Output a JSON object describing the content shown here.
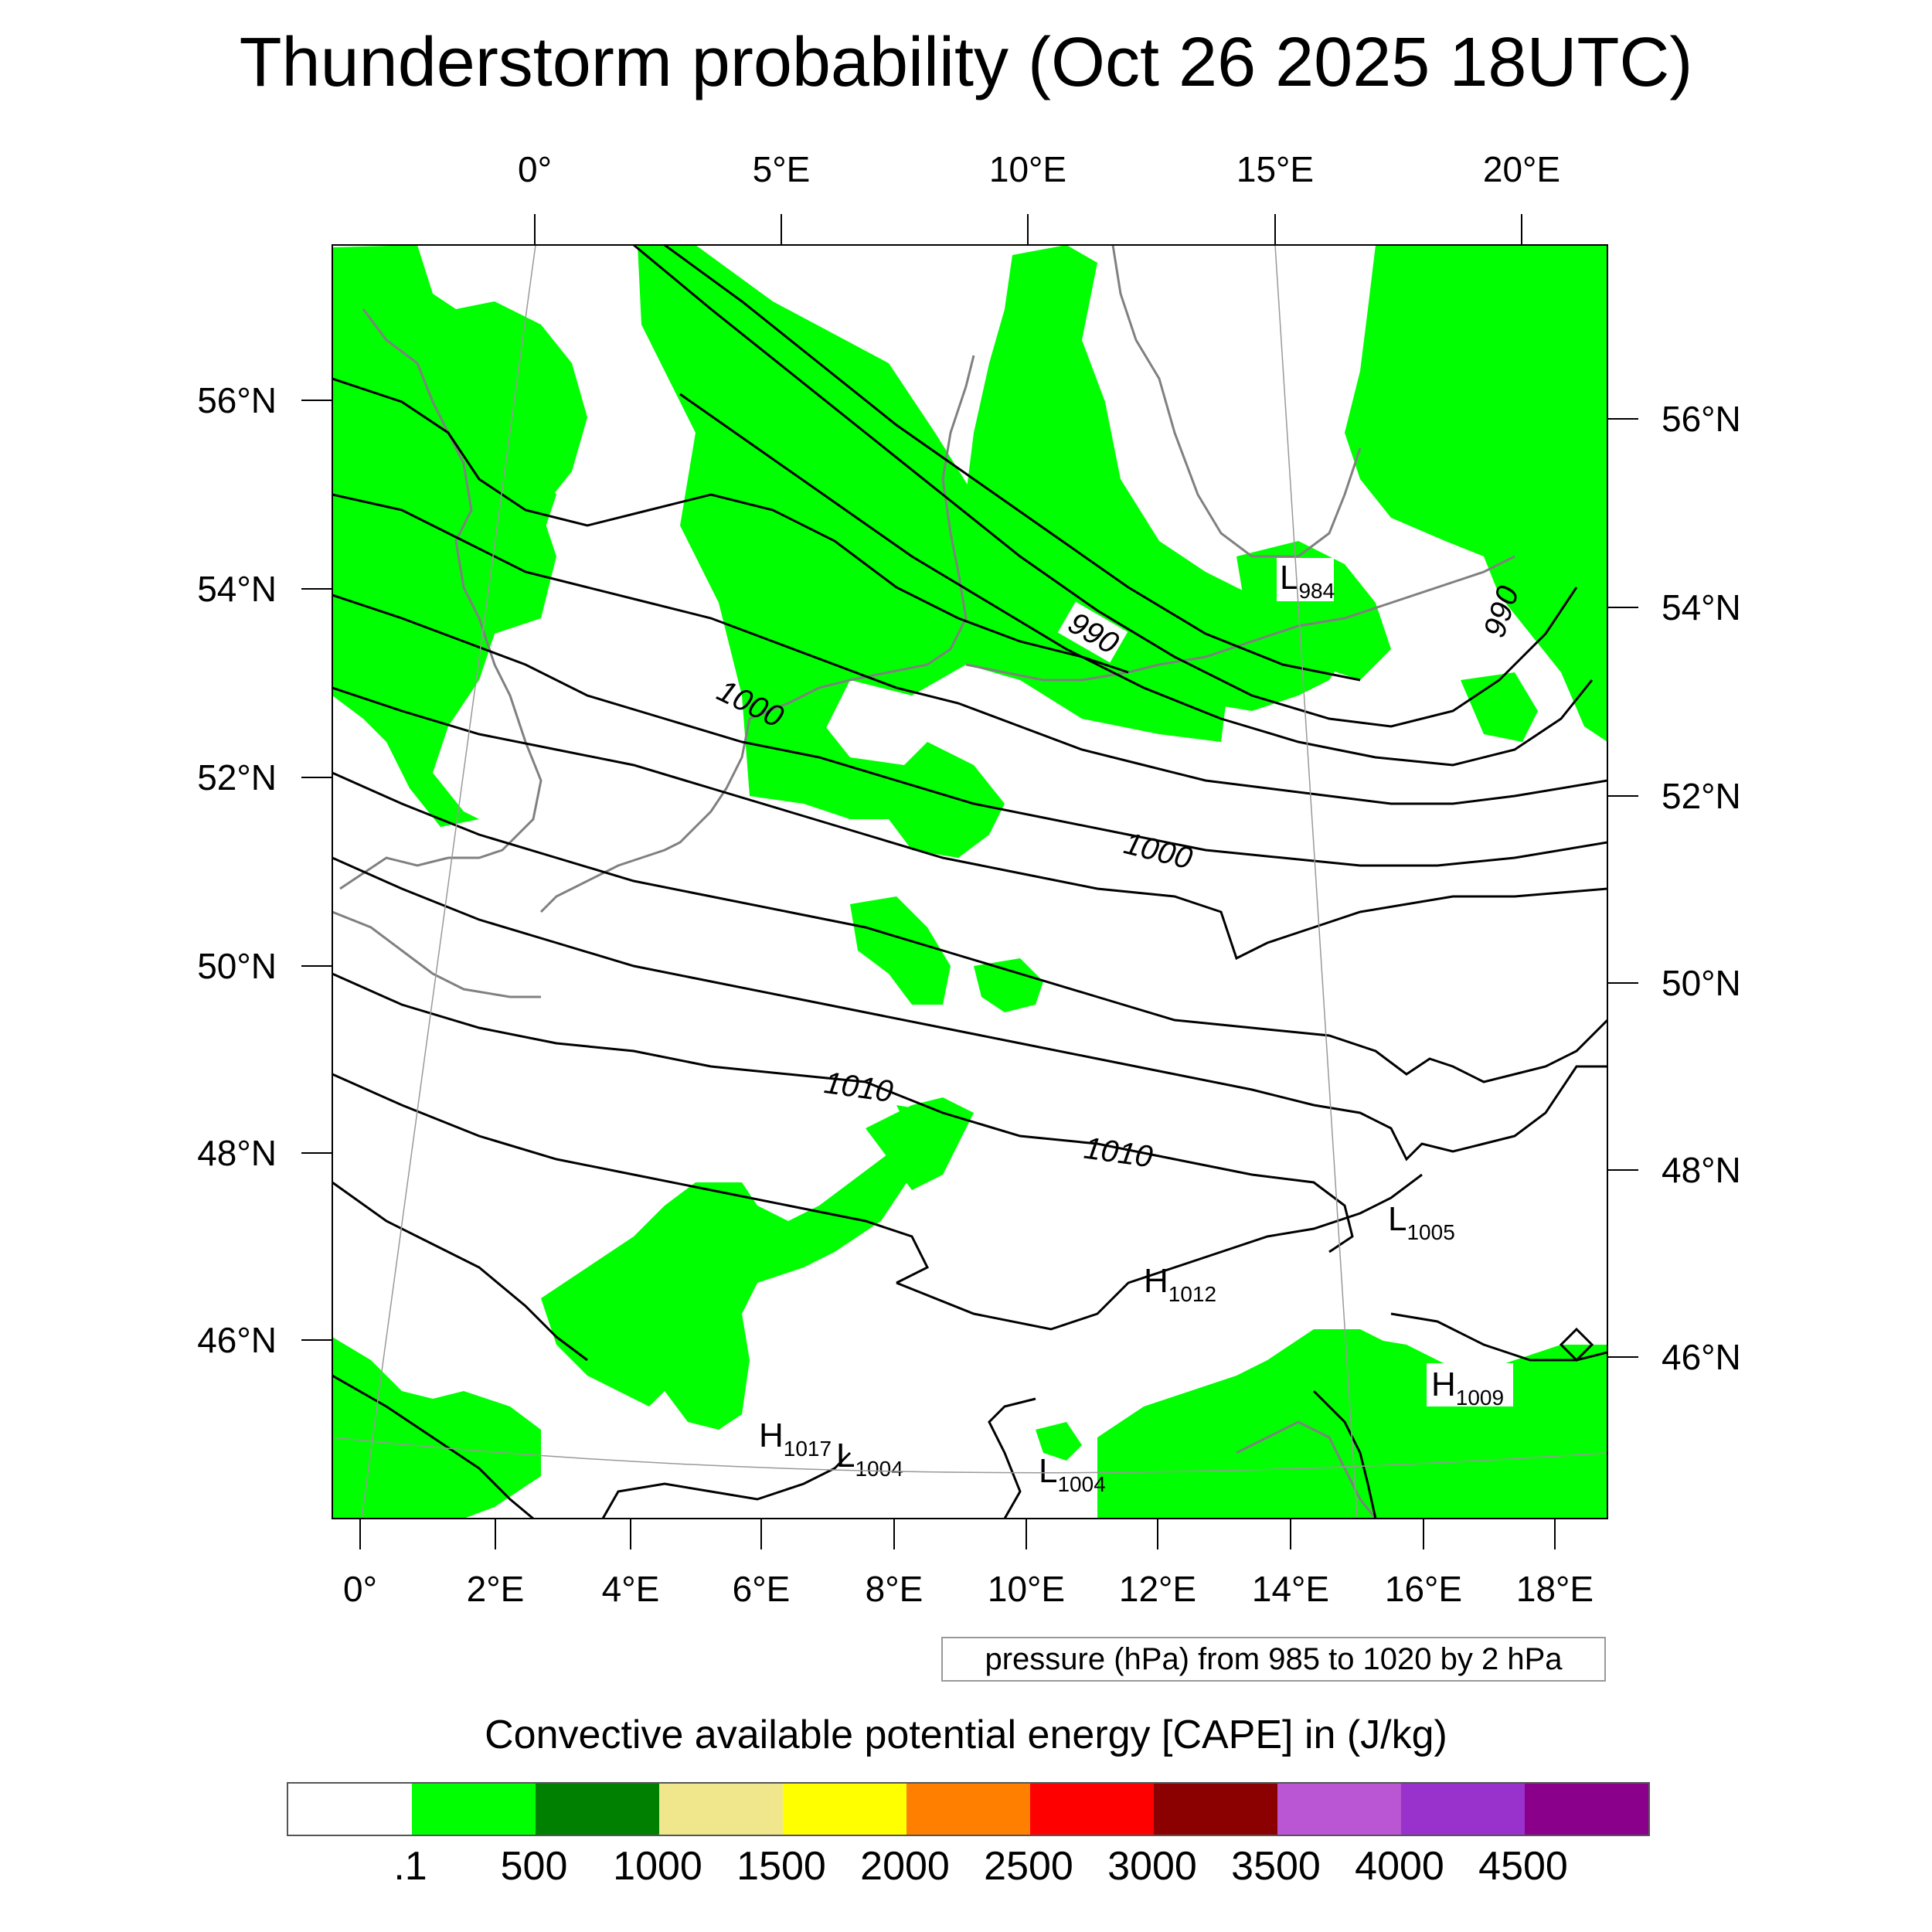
{
  "title": "Thunderstorm probability (Oct 26 2025 18UTC)",
  "top_lon_labels": [
    "0°",
    "5°E",
    "10°E",
    "15°E",
    "20°E"
  ],
  "bottom_lon_labels": [
    "0°",
    "2°E",
    "4°E",
    "6°E",
    "8°E",
    "10°E",
    "12°E",
    "14°E",
    "16°E",
    "18°E"
  ],
  "left_lat_labels": [
    "56°N",
    "54°N",
    "52°N",
    "50°N",
    "48°N",
    "46°N"
  ],
  "right_lat_labels": [
    "56°N",
    "54°N",
    "52°N",
    "50°N",
    "48°N",
    "46°N"
  ],
  "isobar_labels": [
    "1000",
    "1000",
    "990",
    "990",
    "1010",
    "1010"
  ],
  "pressure_centers": [
    {
      "type": "L",
      "value": "984"
    },
    {
      "type": "L",
      "value": "1005"
    },
    {
      "type": "H",
      "value": "1012"
    },
    {
      "type": "H",
      "value": "1009"
    },
    {
      "type": "H",
      "value": "1017"
    },
    {
      "type": "L",
      "value": "1004"
    },
    {
      "type": "L",
      "value": "1004"
    }
  ],
  "info_box": "pressure (hPa) from 985 to 1020 by 2 hPa",
  "colorbar": {
    "title": "Convective available potential energy [CAPE] in (J/kg)",
    "colors": [
      "#ffffff",
      "#00ff00",
      "#008000",
      "#f0e68c",
      "#ffff00",
      "#ff8000",
      "#ff0000",
      "#8b0000",
      "#ba55d3",
      "#9932cc",
      "#8b008b"
    ],
    "labels": [
      ".1",
      "500",
      "1000",
      "1500",
      "2000",
      "2500",
      "3000",
      "3500",
      "4000",
      "4500"
    ]
  },
  "legend_colors": {
    "cape": "#00ff00",
    "isobar": "#000000",
    "coastline": "#808080"
  }
}
